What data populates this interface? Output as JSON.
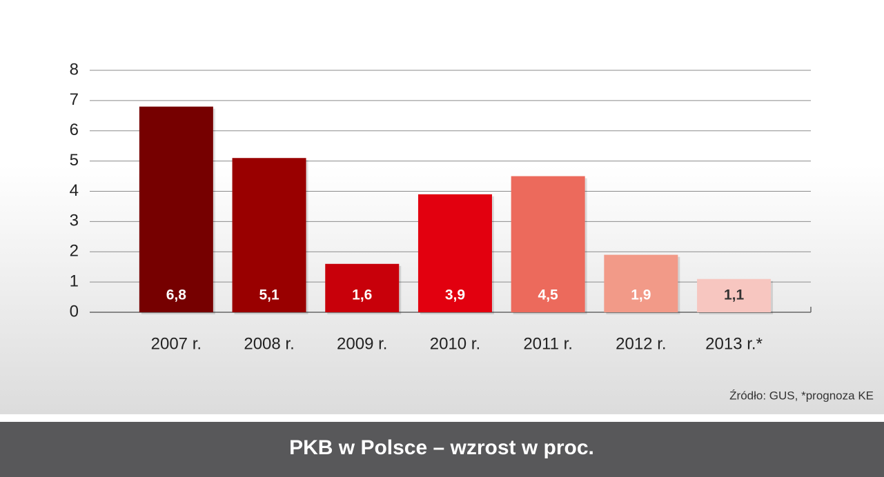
{
  "chart_data": {
    "type": "bar",
    "title": "PKB w Polsce – wzrost w proc.",
    "source": "Źródło: GUS, *prognoza KE",
    "categories": [
      "2007 r.",
      "2008 r.",
      "2009 r.",
      "2010 r.",
      "2011 r.",
      "2012 r.",
      "2013 r.*"
    ],
    "values": [
      6.8,
      5.1,
      1.6,
      3.9,
      4.5,
      1.9,
      1.1
    ],
    "value_labels": [
      "6,8",
      "5,1",
      "1,6",
      "3,9",
      "4,5",
      "1,9",
      "1,1"
    ],
    "colors": [
      "#760000",
      "#990000",
      "#c8000a",
      "#e2000f",
      "#ec6a5c",
      "#f29a88",
      "#f7c6c0"
    ],
    "ylim": [
      0,
      8
    ],
    "yticks": [
      0,
      1,
      2,
      3,
      4,
      5,
      6,
      7,
      8
    ],
    "grid": true
  }
}
